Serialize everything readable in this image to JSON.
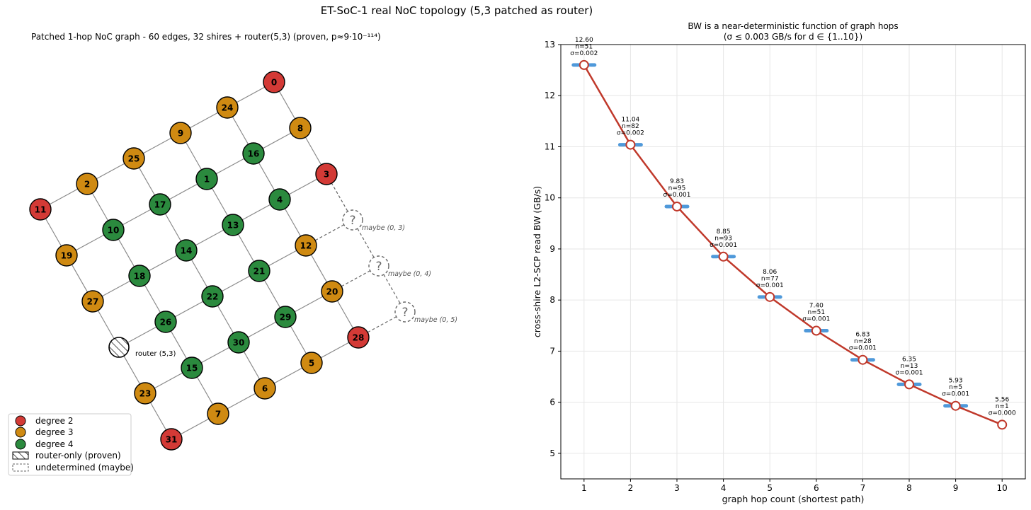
{
  "figure": {
    "title": "ET-SoC-1 real NoC topology (5,3 patched as router)"
  },
  "colors": {
    "degree2": "#d33a36",
    "degree3": "#cf8a12",
    "degree4": "#2b8a3e",
    "edge": "#8a8a8a",
    "line": "#c0392b",
    "spread": "#3d8fd6"
  },
  "graph": {
    "title": "Patched 1-hop NoC graph  -  60 edges, 32 shires + router(5,3) (proven, p≈9·10⁻¹¹⁴)",
    "router_label": "router (5,3)",
    "maybe_mark": "?",
    "maybe_labels": [
      "maybe (0, 3)",
      "maybe (0, 4)",
      "maybe (0, 5)"
    ],
    "grid": [
      [
        "0",
        "24",
        "9",
        "25",
        "2",
        "11"
      ],
      [
        "8",
        "16",
        "1",
        "17",
        "10",
        "19"
      ],
      [
        "3",
        "4",
        "13",
        "14",
        "18",
        "27"
      ],
      [
        "?",
        "12",
        "21",
        "22",
        "26",
        "R"
      ],
      [
        "?",
        "20",
        "29",
        "30",
        "15",
        "23"
      ],
      [
        "?",
        "28",
        "5",
        "6",
        "7",
        "31"
      ]
    ],
    "legend": {
      "degree2": "degree 2",
      "degree3": "degree 3",
      "degree4": "degree 4",
      "router": "router-only (proven)",
      "maybe": "undetermined (maybe)"
    }
  },
  "chart_data": {
    "type": "line",
    "title": "BW is a near-deterministic function of graph hops",
    "subtitle": "(σ ≤ 0.003 GB/s for d ∈ {1..10})",
    "xlabel": "graph hop count (shortest path)",
    "ylabel": "cross-shire L2-SCP read BW (GB/s)",
    "x": [
      1,
      2,
      3,
      4,
      5,
      6,
      7,
      8,
      9,
      10
    ],
    "y": [
      12.6,
      11.04,
      9.83,
      8.85,
      8.06,
      7.4,
      6.83,
      6.35,
      5.93,
      5.56
    ],
    "n": [
      51,
      82,
      95,
      93,
      77,
      51,
      28,
      13,
      5,
      1
    ],
    "sigma": [
      0.002,
      0.002,
      0.001,
      0.001,
      0.001,
      0.001,
      0.001,
      0.001,
      0.001,
      0.0
    ],
    "value_labels": [
      "12.60",
      "11.04",
      "9.83",
      "8.85",
      "8.06",
      "7.40",
      "6.83",
      "6.35",
      "5.93",
      "5.56"
    ],
    "n_labels": [
      "n=51",
      "n=82",
      "n=95",
      "n=93",
      "n=77",
      "n=51",
      "n=28",
      "n=13",
      "n=5",
      "n=1"
    ],
    "sigma_labels": [
      "σ=0.002",
      "σ=0.002",
      "σ=0.001",
      "σ=0.001",
      "σ=0.001",
      "σ=0.001",
      "σ=0.001",
      "σ=0.001",
      "σ=0.001",
      "σ=0.000"
    ],
    "xticks": [
      "1",
      "2",
      "3",
      "4",
      "5",
      "6",
      "7",
      "8",
      "9",
      "10"
    ],
    "yticks": [
      "5",
      "6",
      "7",
      "8",
      "9",
      "10",
      "11",
      "12",
      "13"
    ],
    "xlim": [
      0.5,
      10.5
    ],
    "ylim": [
      4.5,
      13.0
    ],
    "grid": true
  }
}
